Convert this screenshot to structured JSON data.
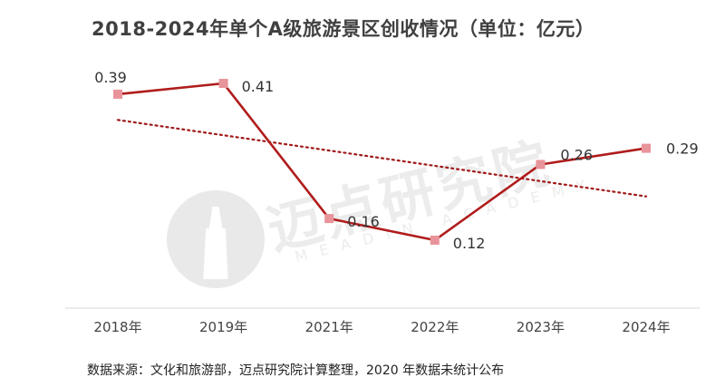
{
  "title": "2018-2024年单个A级旅游景区创收情况（单位：亿元）",
  "source": "数据来源：文化和旅游部，迈点研究院计算整理，2020 年数据未统计公布",
  "watermark": {
    "text": "迈点研究院",
    "sub": "MEADIN ACADEMY"
  },
  "chart_data": {
    "type": "line",
    "title": "2018-2024年单个A级旅游景区创收情况（单位：亿元）",
    "xlabel": "",
    "ylabel": "",
    "categories": [
      "2018年",
      "2019年",
      "2021年",
      "2022年",
      "2023年",
      "2024年"
    ],
    "values": [
      0.39,
      0.41,
      0.16,
      0.12,
      0.26,
      0.29
    ],
    "data_labels": [
      "0.39",
      "0.41",
      "0.16",
      "0.12",
      "0.26",
      "0.29"
    ],
    "trendline": {
      "type": "linear",
      "style": "dotted"
    },
    "grid": false,
    "legend": "none",
    "colors": {
      "line": "#b01c1c",
      "marker": "#e8949a",
      "trend": "#a01818"
    }
  }
}
